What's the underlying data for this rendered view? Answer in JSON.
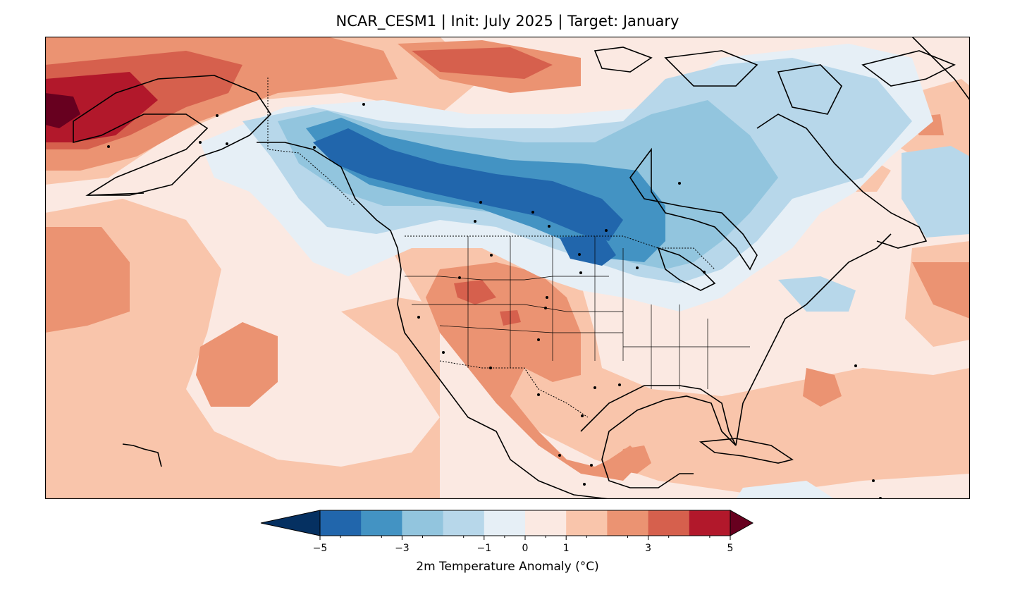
{
  "title": "NCAR_CESM1 | Init: July 2025 | Target: January",
  "colorbar": {
    "label": "2m Temperature Anomaly (°C)",
    "min": -5,
    "max": 5,
    "extend": "both",
    "levels": [
      -5,
      -4,
      -3,
      -2,
      -1,
      0,
      1,
      2,
      3,
      4,
      5
    ],
    "minor_levels": [
      -4.5,
      -3.5,
      -2.5,
      -1.5,
      -0.5,
      0.5,
      1.5,
      2.5,
      3.5,
      4.5
    ],
    "tick_values": [
      -5,
      -3,
      -1,
      0,
      1,
      3,
      5
    ],
    "tick_labels": [
      "−5",
      "−3",
      "−1",
      "0",
      "1",
      "3",
      "5"
    ],
    "colors": [
      "#053061",
      "#2166ac",
      "#4393c3",
      "#92c5de",
      "#b7d7ea",
      "#e6eff6",
      "#fbe9e2",
      "#f9c5ab",
      "#eb9372",
      "#d6604d",
      "#b2182b",
      "#67001f"
    ],
    "under_color": "#053061",
    "over_color": "#67001f"
  },
  "map": {
    "region": "North America",
    "land_line_color": "#000000",
    "background": "#fbe9e2"
  }
}
